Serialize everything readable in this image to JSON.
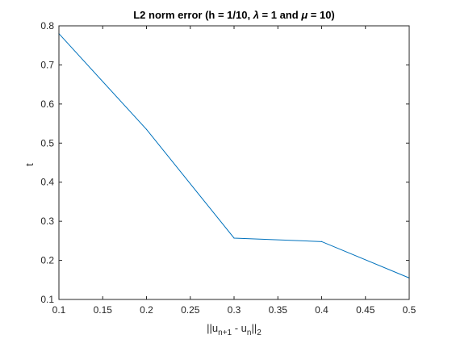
{
  "chart_data": {
    "type": "line",
    "title_parts": [
      "L2 norm error (h = 1/10, ",
      "λ",
      " = 1 and ",
      "μ",
      " = 10)"
    ],
    "xlabel_parts": [
      "||u",
      "n+1",
      " - u",
      "n",
      "||",
      "2"
    ],
    "ylabel": "t",
    "xlim": [
      0.1,
      0.5
    ],
    "ylim": [
      0.1,
      0.8
    ],
    "xticks": [
      "0.1",
      "0.15",
      "0.2",
      "0.25",
      "0.3",
      "0.35",
      "0.4",
      "0.45",
      "0.5"
    ],
    "yticks": [
      "0.1",
      "0.2",
      "0.3",
      "0.4",
      "0.5",
      "0.6",
      "0.7",
      "0.8"
    ],
    "grid": false,
    "series": [
      {
        "color": "#0072BD",
        "x": [
          0.1,
          0.2,
          0.3,
          0.4,
          0.5
        ],
        "y": [
          0.78,
          0.535,
          0.257,
          0.248,
          0.155
        ]
      }
    ]
  }
}
